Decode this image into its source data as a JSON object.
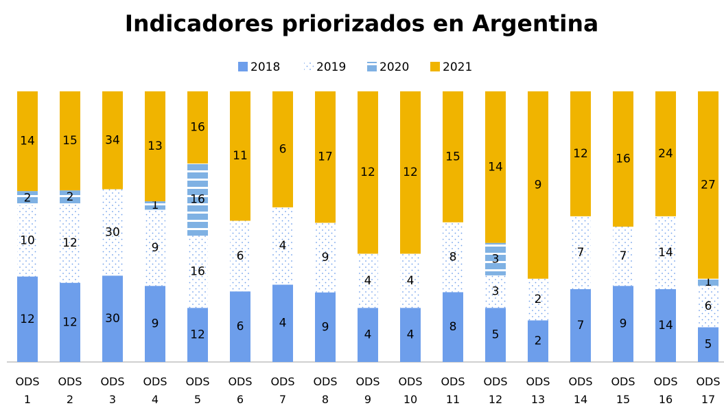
{
  "chart_data": {
    "type": "stacked_bar_100",
    "title": "Indicadores priorizados en Argentina",
    "categories": [
      "ODS 1",
      "ODS 2",
      "ODS 3",
      "ODS 4",
      "ODS 5",
      "ODS 6",
      "ODS 7",
      "ODS 8",
      "ODS 9",
      "ODS 10",
      "ODS 11",
      "ODS 12",
      "ODS 13",
      "ODS 14",
      "ODS 15",
      "ODS 16",
      "ODS 17"
    ],
    "series": [
      {
        "name": "2018",
        "color": "#6d9eeb",
        "fill_style": "solid",
        "values": [
          12,
          12,
          30,
          9,
          12,
          6,
          4,
          9,
          4,
          4,
          8,
          5,
          2,
          7,
          9,
          14,
          5
        ]
      },
      {
        "name": "2019",
        "color": "#6d9eeb",
        "fill_style": "dots",
        "values": [
          10,
          12,
          30,
          9,
          16,
          6,
          4,
          9,
          4,
          4,
          8,
          3,
          2,
          7,
          7,
          14,
          6
        ]
      },
      {
        "name": "2020",
        "color": "#7fb1e3",
        "fill_style": "stripes",
        "values": [
          2,
          2,
          null,
          1,
          16,
          null,
          null,
          null,
          null,
          null,
          null,
          3,
          null,
          null,
          null,
          null,
          1
        ]
      },
      {
        "name": "2021",
        "color": "#f0b400",
        "fill_style": "solid",
        "values": [
          14,
          15,
          34,
          13,
          16,
          11,
          6,
          17,
          12,
          12,
          15,
          14,
          9,
          12,
          16,
          24,
          27
        ]
      }
    ],
    "legend": "top"
  }
}
